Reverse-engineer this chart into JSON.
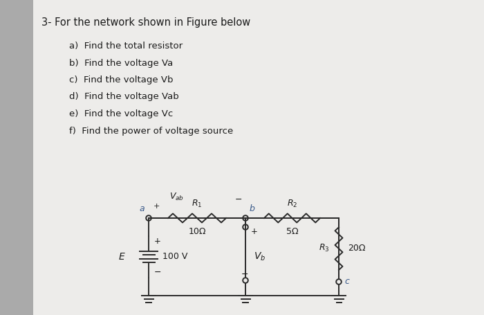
{
  "title": "3- For the network shown in Figure below",
  "questions": [
    "a)  Find the total resistor",
    "b)  Find the voltage Va",
    "c)  Find the voltage Vb",
    "d)  Find the voltage Vab",
    "e)  Find the voltage Vc",
    "f)  Find the power of voltage source"
  ],
  "sidebar_color": "#aaaaaa",
  "page_color": "#edecea",
  "text_color": "#1a1a1a",
  "circuit_color": "#2a2a2a",
  "title_fontsize": 10.5,
  "question_fontsize": 9.5,
  "circuit_lw": 1.4,
  "xa": 2.15,
  "xb": 3.55,
  "xr": 4.9,
  "ytop": 1.4,
  "ybot": 0.28,
  "batt_half": 0.3
}
